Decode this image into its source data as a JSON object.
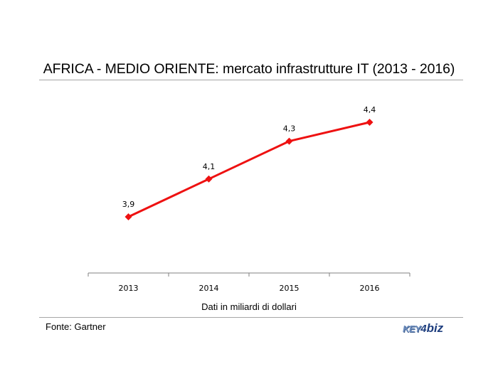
{
  "chart_data": {
    "type": "line",
    "title": "AFRICA - MEDIO ORIENTE: mercato infrastrutture IT (2013 - 2016)",
    "xlabel": "Dati in miliardi di dollari",
    "ylabel": "",
    "categories": [
      "2013",
      "2014",
      "2015",
      "2016"
    ],
    "series": [
      {
        "values": [
          3.9,
          4.1,
          4.3,
          4.4
        ],
        "data_labels": [
          "3,9",
          "4,1",
          "4,3",
          "4,4"
        ]
      }
    ],
    "ylim": [
      3.8,
      4.4
    ],
    "y_axis_visible": false,
    "grid": false,
    "legend": "none",
    "marker": "diamond",
    "colors": {
      "line": "#ee1111",
      "axis": "#808080"
    }
  },
  "footer": {
    "source": "Fonte: Gartner",
    "logo_text": "KEY4biz"
  }
}
